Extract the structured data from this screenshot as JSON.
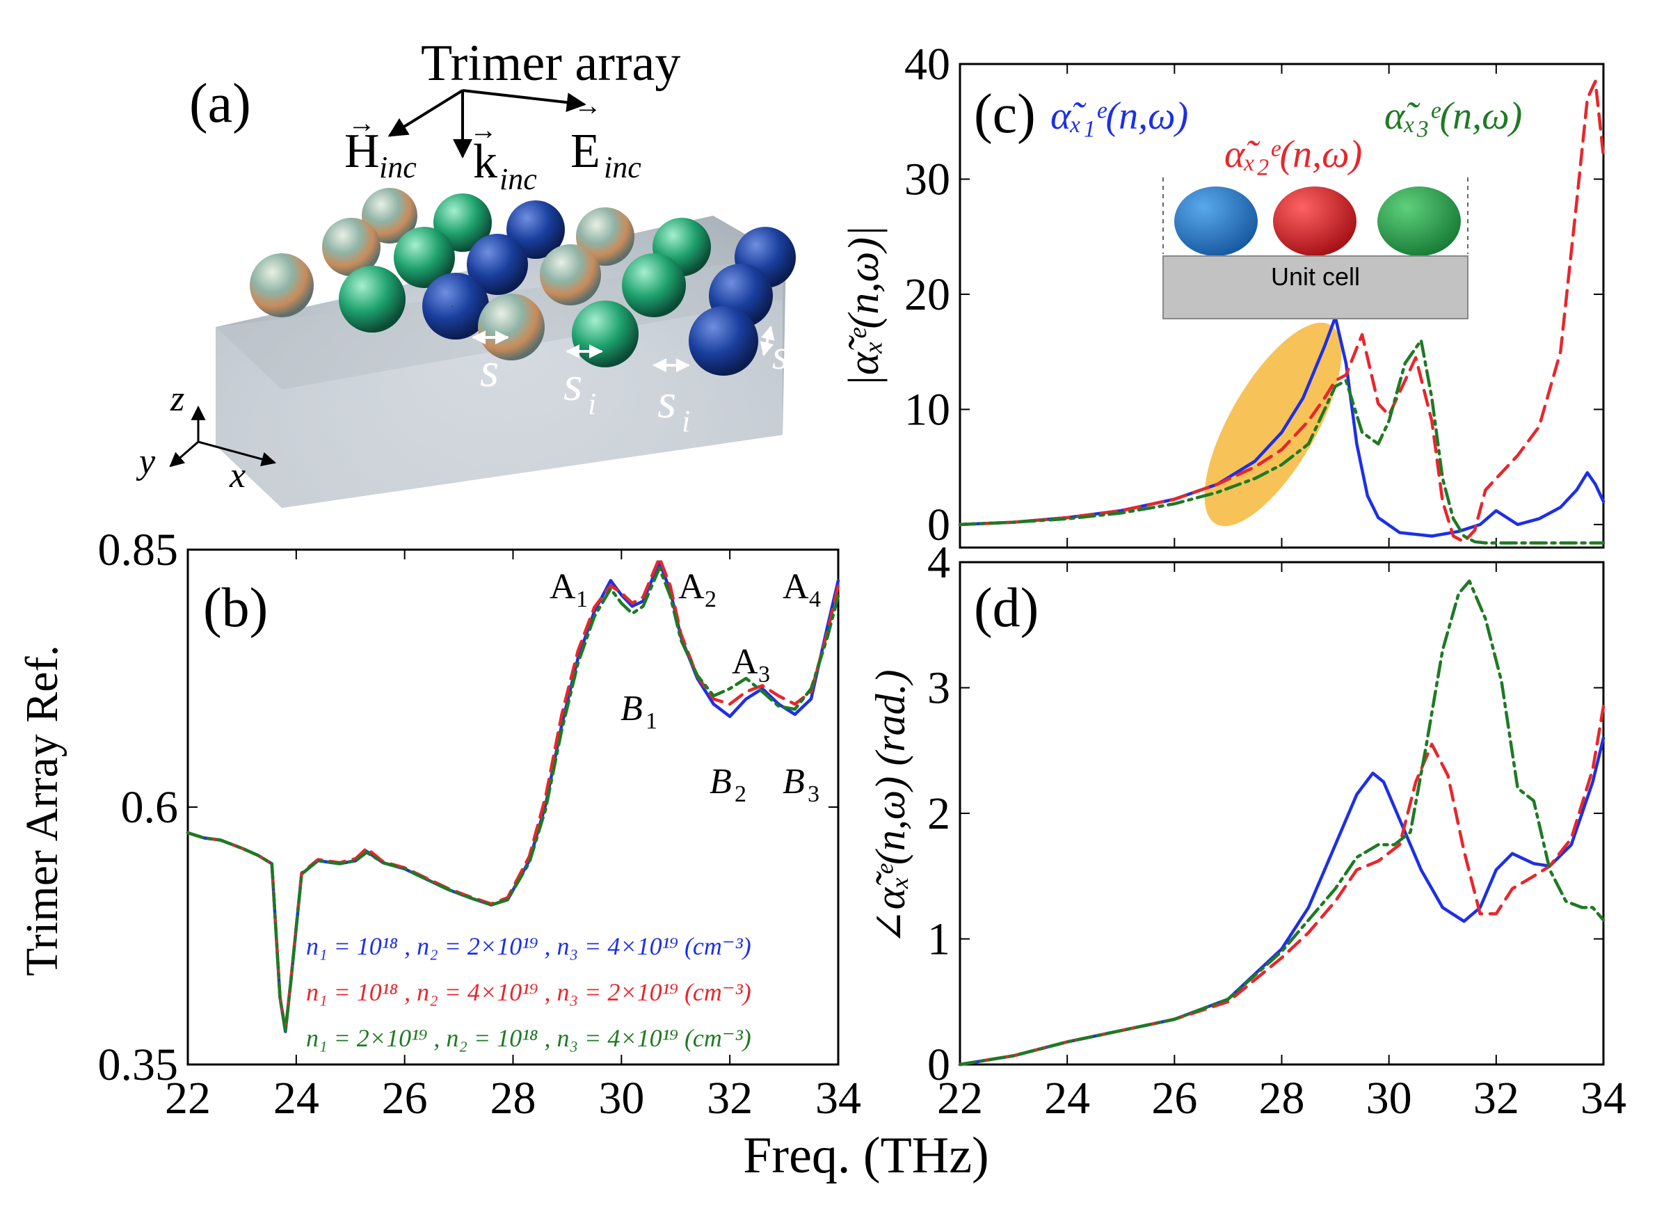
{
  "panel_a": {
    "label": "(a)",
    "title": "Trimer array",
    "vectors": {
      "H": "H",
      "H_sub": "inc",
      "k": "k",
      "k_sub": "inc",
      "E": "E",
      "E_sub": "inc"
    },
    "axes": {
      "x": "x",
      "y": "y",
      "z": "z"
    },
    "gaps": {
      "s": "s",
      "si": "s",
      "si_sub": "i",
      "s_right": "s"
    }
  },
  "panel_b": {
    "label": "(b)",
    "peak_labels": {
      "A1": "A",
      "A1s": "1",
      "A2": "A",
      "A2s": "2",
      "A3": "A",
      "A3s": "3",
      "A4": "A",
      "A4s": "4"
    },
    "dip_labels": {
      "B1": "B",
      "B1s": "1",
      "B2": "B",
      "B2s": "2",
      "B3": "B",
      "B3s": "3"
    },
    "legend": {
      "blue": "n₁ = 10¹⁸ , n₂ = 2×10¹⁹ , n₃ = 4×10¹⁹ (cm⁻³)",
      "red": "n₁ = 10¹⁸ , n₂ = 4×10¹⁹ , n₃ = 2×10¹⁹ (cm⁻³)",
      "green": "n₁ = 2×10¹⁹ , n₂ = 10¹⁸ , n₃ = 4×10¹⁹ (cm⁻³)"
    }
  },
  "panel_c": {
    "label": "(c)",
    "legend_x1": "α̃ₓ₁ᵉ(n,ω)",
    "legend_x2": "α̃ₓ₂ᵉ(n,ω)",
    "legend_x3": "α̃ₓ₃ᵉ(n,ω)",
    "inset_label": "Unit cell"
  },
  "panel_d": {
    "label": "(d)"
  },
  "colors": {
    "blue": "#1d2fe6",
    "red": "#e8262b",
    "green": "#1e7a23",
    "highlight": "#f6b93b"
  },
  "chart_data": [
    {
      "type": "line",
      "panel": "b",
      "title": "",
      "xlabel": "Freq. (THz)",
      "ylabel": "Trimer Array Ref.",
      "xlim": [
        22,
        34
      ],
      "ylim": [
        0.35,
        0.85
      ],
      "xticks": [
        22,
        24,
        26,
        28,
        30,
        32,
        34
      ],
      "xticklabels": [
        "22",
        "24",
        "26",
        "28",
        "30",
        "32",
        "34"
      ],
      "yticks": [
        0.35,
        0.6,
        0.85
      ],
      "yticklabels": [
        "0.35",
        "0.6",
        "0.85"
      ],
      "series": [
        {
          "name": "blue",
          "style": "solid",
          "x": [
            22.0,
            22.3,
            22.6,
            23.0,
            23.3,
            23.55,
            23.7,
            23.8,
            23.9,
            24.1,
            24.4,
            24.8,
            25.1,
            25.3,
            25.6,
            26.0,
            26.4,
            26.8,
            27.2,
            27.6,
            27.9,
            28.3,
            28.6,
            28.9,
            29.2,
            29.5,
            29.8,
            30.0,
            30.2,
            30.4,
            30.7,
            30.9,
            31.1,
            31.4,
            31.7,
            32.0,
            32.3,
            32.6,
            32.9,
            33.2,
            33.5,
            33.8,
            34.0
          ],
          "values": [
            0.575,
            0.57,
            0.568,
            0.56,
            0.553,
            0.545,
            0.415,
            0.382,
            0.43,
            0.535,
            0.548,
            0.545,
            0.548,
            0.557,
            0.546,
            0.54,
            0.53,
            0.52,
            0.512,
            0.505,
            0.51,
            0.548,
            0.602,
            0.68,
            0.745,
            0.79,
            0.82,
            0.806,
            0.795,
            0.8,
            0.838,
            0.81,
            0.765,
            0.725,
            0.7,
            0.688,
            0.705,
            0.715,
            0.7,
            0.69,
            0.705,
            0.775,
            0.82
          ]
        },
        {
          "name": "red",
          "style": "dashed",
          "x": [
            22.0,
            22.3,
            22.6,
            23.0,
            23.3,
            23.55,
            23.7,
            23.8,
            23.9,
            24.1,
            24.4,
            24.8,
            25.1,
            25.3,
            25.6,
            26.0,
            26.4,
            26.8,
            27.2,
            27.6,
            27.9,
            28.3,
            28.6,
            28.9,
            29.2,
            29.5,
            29.8,
            30.0,
            30.2,
            30.4,
            30.7,
            30.9,
            31.1,
            31.4,
            31.7,
            32.0,
            32.3,
            32.6,
            32.9,
            33.2,
            33.5,
            33.8,
            34.0
          ],
          "values": [
            0.575,
            0.57,
            0.568,
            0.56,
            0.553,
            0.545,
            0.416,
            0.383,
            0.431,
            0.536,
            0.549,
            0.546,
            0.55,
            0.56,
            0.547,
            0.541,
            0.531,
            0.521,
            0.513,
            0.506,
            0.512,
            0.552,
            0.61,
            0.69,
            0.752,
            0.794,
            0.815,
            0.808,
            0.798,
            0.804,
            0.842,
            0.815,
            0.768,
            0.727,
            0.705,
            0.7,
            0.712,
            0.718,
            0.708,
            0.7,
            0.712,
            0.77,
            0.815
          ]
        },
        {
          "name": "green",
          "style": "dashdot",
          "x": [
            22.0,
            22.3,
            22.6,
            23.0,
            23.3,
            23.55,
            23.7,
            23.8,
            23.9,
            24.1,
            24.4,
            24.8,
            25.1,
            25.3,
            25.6,
            26.0,
            26.4,
            26.8,
            27.2,
            27.6,
            27.9,
            28.3,
            28.6,
            28.9,
            29.2,
            29.5,
            29.8,
            30.0,
            30.2,
            30.4,
            30.7,
            30.9,
            31.1,
            31.4,
            31.7,
            32.0,
            32.3,
            32.6,
            32.9,
            33.2,
            33.5,
            33.8,
            34.0
          ],
          "values": [
            0.575,
            0.57,
            0.568,
            0.56,
            0.553,
            0.545,
            0.415,
            0.382,
            0.43,
            0.535,
            0.548,
            0.545,
            0.548,
            0.556,
            0.546,
            0.54,
            0.53,
            0.52,
            0.512,
            0.505,
            0.51,
            0.546,
            0.598,
            0.675,
            0.74,
            0.785,
            0.812,
            0.798,
            0.788,
            0.795,
            0.832,
            0.805,
            0.762,
            0.728,
            0.708,
            0.715,
            0.725,
            0.712,
            0.698,
            0.695,
            0.715,
            0.765,
            0.805
          ]
        }
      ]
    },
    {
      "type": "line",
      "panel": "c",
      "title": "",
      "xlabel": "",
      "ylabel": "|α̃ₓᵉ(n,ω)|",
      "xlim": [
        22,
        34
      ],
      "ylim": [
        -2,
        40
      ],
      "xticks": [
        22,
        24,
        26,
        28,
        30,
        32,
        34
      ],
      "xticklabels": [],
      "yticks": [
        0,
        10,
        20,
        30,
        40
      ],
      "yticklabels": [
        "0",
        "10",
        "20",
        "30",
        "40"
      ],
      "series": [
        {
          "name": "α̃ₓ₁ᵉ(n,ω)",
          "color": "blue",
          "style": "solid",
          "x": [
            22.0,
            23.0,
            24.0,
            25.0,
            26.0,
            26.8,
            27.5,
            28.0,
            28.4,
            28.8,
            29.0,
            29.2,
            29.4,
            29.6,
            29.8,
            30.2,
            30.8,
            31.3,
            31.7,
            32.0,
            32.4,
            32.8,
            33.2,
            33.5,
            33.7,
            33.85,
            34.0
          ],
          "values": [
            0.0,
            0.2,
            0.6,
            1.2,
            2.2,
            3.5,
            5.5,
            8.0,
            11.0,
            15.5,
            18.0,
            14.0,
            7.0,
            2.5,
            0.6,
            -0.7,
            -1.0,
            -0.6,
            0.0,
            1.2,
            0.0,
            0.5,
            1.5,
            3.0,
            4.5,
            3.5,
            2.0
          ]
        },
        {
          "name": "α̃ₓ₂ᵉ(n,ω)",
          "color": "red",
          "style": "dashed",
          "x": [
            22.0,
            23.0,
            24.0,
            25.0,
            26.0,
            26.8,
            27.5,
            28.0,
            28.5,
            28.8,
            29.0,
            29.2,
            29.5,
            29.8,
            30.0,
            30.2,
            30.5,
            30.8,
            31.0,
            31.2,
            31.4,
            31.6,
            31.8,
            32.0,
            32.4,
            32.8,
            33.2,
            33.5,
            33.7,
            33.85,
            34.0
          ],
          "values": [
            0.0,
            0.2,
            0.6,
            1.2,
            2.2,
            3.5,
            5.0,
            6.5,
            9.0,
            11.0,
            12.5,
            13.0,
            16.5,
            10.5,
            9.5,
            11.5,
            14.5,
            9.0,
            2.0,
            -1.0,
            -1.5,
            -0.5,
            3.0,
            4.0,
            6.0,
            8.5,
            15.0,
            28.0,
            37.0,
            38.5,
            32.0
          ]
        },
        {
          "name": "α̃ₓ₃ᵉ(n,ω)",
          "color": "green",
          "style": "dashdot",
          "x": [
            22.0,
            23.0,
            24.0,
            25.0,
            26.0,
            26.8,
            27.5,
            28.0,
            28.5,
            28.8,
            29.0,
            29.2,
            29.5,
            29.8,
            30.0,
            30.3,
            30.6,
            30.8,
            31.0,
            31.2,
            31.4,
            31.6,
            31.8,
            32.0,
            32.4,
            32.8,
            33.2,
            33.6,
            34.0
          ],
          "values": [
            0.0,
            0.2,
            0.5,
            1.0,
            1.8,
            2.8,
            4.0,
            5.2,
            7.0,
            10.0,
            12.0,
            12.5,
            8.0,
            7.0,
            9.0,
            14.0,
            16.0,
            11.0,
            4.0,
            0.5,
            -1.0,
            -1.5,
            -1.6,
            -1.6,
            -1.6,
            -1.6,
            -1.6,
            -1.6,
            -1.6
          ]
        }
      ]
    },
    {
      "type": "line",
      "panel": "d",
      "title": "",
      "xlabel": "Freq. (THz)",
      "ylabel": "∠α̃ₓᵉ(n,ω) (rad.)",
      "xlim": [
        22,
        34
      ],
      "ylim": [
        0,
        4
      ],
      "xticks": [
        22,
        24,
        26,
        28,
        30,
        32,
        34
      ],
      "xticklabels": [
        "22",
        "24",
        "26",
        "28",
        "30",
        "32",
        "34"
      ],
      "yticks": [
        0,
        1,
        2,
        3,
        4
      ],
      "yticklabels": [
        "0",
        "1",
        "2",
        "3",
        "4"
      ],
      "series": [
        {
          "name": "blue",
          "style": "solid",
          "x": [
            22.0,
            23.0,
            24.0,
            25.0,
            26.0,
            27.0,
            28.0,
            28.5,
            29.0,
            29.4,
            29.7,
            29.9,
            30.2,
            30.6,
            31.0,
            31.4,
            31.7,
            32.0,
            32.3,
            32.7,
            33.0,
            33.4,
            33.8,
            34.0
          ],
          "values": [
            0.0,
            0.07,
            0.18,
            0.27,
            0.36,
            0.52,
            0.92,
            1.25,
            1.75,
            2.15,
            2.32,
            2.25,
            1.95,
            1.55,
            1.25,
            1.14,
            1.25,
            1.55,
            1.68,
            1.6,
            1.58,
            1.75,
            2.25,
            2.6
          ]
        },
        {
          "name": "red",
          "style": "dashed",
          "x": [
            22.0,
            23.0,
            24.0,
            25.0,
            26.0,
            27.0,
            28.0,
            28.5,
            29.0,
            29.4,
            29.8,
            30.2,
            30.5,
            30.8,
            31.1,
            31.4,
            31.7,
            32.0,
            32.3,
            32.7,
            33.0,
            33.4,
            33.8,
            34.0
          ],
          "values": [
            0.0,
            0.07,
            0.18,
            0.27,
            0.36,
            0.5,
            0.85,
            1.05,
            1.3,
            1.55,
            1.62,
            1.75,
            2.25,
            2.55,
            2.3,
            1.7,
            1.2,
            1.2,
            1.4,
            1.5,
            1.58,
            1.8,
            2.35,
            2.85
          ]
        },
        {
          "name": "green",
          "style": "dashdot",
          "x": [
            22.0,
            23.0,
            24.0,
            25.0,
            26.0,
            27.0,
            28.0,
            28.5,
            29.0,
            29.4,
            29.8,
            30.1,
            30.4,
            30.7,
            31.0,
            31.3,
            31.5,
            31.8,
            32.1,
            32.4,
            32.7,
            33.0,
            33.3,
            33.6,
            33.8,
            34.0
          ],
          "values": [
            0.0,
            0.07,
            0.18,
            0.27,
            0.36,
            0.52,
            0.9,
            1.15,
            1.4,
            1.65,
            1.75,
            1.75,
            1.85,
            2.55,
            3.3,
            3.75,
            3.85,
            3.55,
            3.05,
            2.2,
            2.1,
            1.55,
            1.3,
            1.25,
            1.25,
            1.15
          ]
        }
      ]
    }
  ]
}
